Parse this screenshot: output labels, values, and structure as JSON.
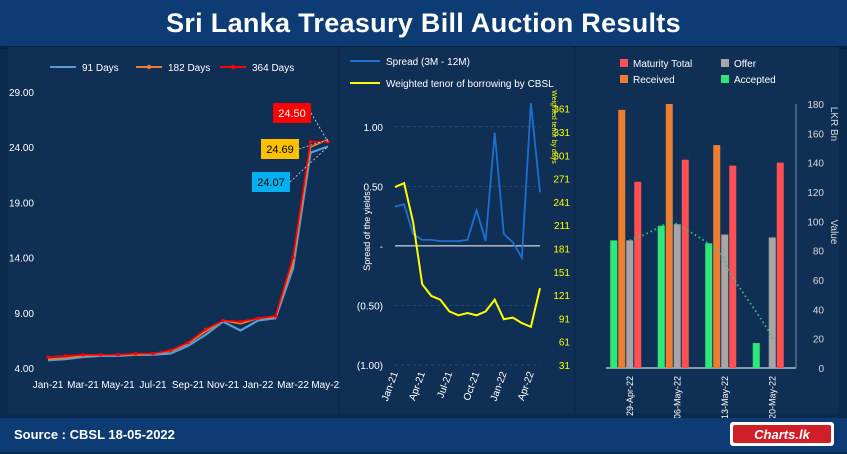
{
  "page": {
    "title": "Sri Lanka Treasury Bill Auction Results",
    "source": "Source : CBSL 18-05-2022",
    "logo_text": "Charts.lk"
  },
  "colors": {
    "bg": "#0c2a4d",
    "panel": "#102f55",
    "d91": "#5b9bd5",
    "d182": "#ed7d31",
    "d364": "#ff0000",
    "spread": "#1f6fd0",
    "tenor": "#ffff00",
    "maturity": "#ff5055",
    "offer": "#a6a6a6",
    "received": "#ed7d31",
    "accepted": "#2ee87a",
    "value_line": "#2ecc71"
  },
  "chart_data": [
    {
      "type": "line",
      "legend": [
        "91 Days",
        "182 Days",
        "364 Days"
      ],
      "ylim": [
        4,
        29
      ],
      "yticks": [
        "29.00",
        "24.00",
        "19.00",
        "14.00",
        "9.00",
        "4.00"
      ],
      "xticks": [
        "Jan-21",
        "Mar-21",
        "May-21",
        "Jul-21",
        "Sep-21",
        "Nov-21",
        "Jan-22",
        "Mar-22",
        "May-22"
      ],
      "x": [
        "Jan-21",
        "Feb-21",
        "Mar-21",
        "Apr-21",
        "May-21",
        "Jun-21",
        "Jul-21",
        "Aug-21",
        "Sep-21",
        "Oct-21",
        "Nov-21",
        "Dec-21",
        "Jan-22",
        "Feb-22",
        "Mar-22",
        "Apr-22",
        "May-22"
      ],
      "series": [
        {
          "name": "91 Days",
          "values": [
            4.7,
            4.8,
            5.0,
            5.1,
            5.1,
            5.2,
            5.2,
            5.3,
            6.0,
            7.0,
            8.2,
            7.4,
            8.3,
            8.5,
            13.0,
            23.5,
            24.07
          ]
        },
        {
          "name": "182 Days",
          "values": [
            4.8,
            4.9,
            5.1,
            5.2,
            5.2,
            5.2,
            5.3,
            5.5,
            6.2,
            7.3,
            8.3,
            8.0,
            8.5,
            8.6,
            13.5,
            24.0,
            24.69
          ]
        },
        {
          "name": "364 Days",
          "values": [
            5.0,
            5.1,
            5.2,
            5.2,
            5.2,
            5.3,
            5.3,
            5.6,
            6.3,
            7.5,
            8.3,
            8.2,
            8.5,
            8.7,
            14.0,
            24.5,
            24.5
          ]
        }
      ],
      "annotations": [
        "24.50",
        "24.69",
        "24.07"
      ]
    },
    {
      "type": "line",
      "legend": [
        "Spread (3M - 12M)",
        "Weighted tenor of borrowing by CBSL"
      ],
      "ylabel_left": "Spread of the yields",
      "ylabel_right": "Weighted tenor by days",
      "ylim_left": [
        -1.0,
        1.25
      ],
      "yticks_left": [
        "1.00",
        "0.50",
        "-",
        "(0.50)",
        "(1.00)"
      ],
      "ylim_right": [
        31,
        376
      ],
      "yticks_right": [
        "361",
        "331",
        "301",
        "271",
        "241",
        "211",
        "181",
        "151",
        "121",
        "91",
        "61",
        "31"
      ],
      "xticks": [
        "Jan-21",
        "Apr-21",
        "Jul-21",
        "Oct-21",
        "Jan-22",
        "Apr-22"
      ],
      "x": [
        "Jan-21",
        "Feb-21",
        "Mar-21",
        "Apr-21",
        "May-21",
        "Jun-21",
        "Jul-21",
        "Aug-21",
        "Sep-21",
        "Oct-21",
        "Nov-21",
        "Dec-21",
        "Jan-22",
        "Feb-22",
        "Mar-22",
        "Apr-22",
        "May-22"
      ],
      "series": [
        {
          "name": "Spread (3M - 12M)",
          "values": [
            0.33,
            0.35,
            0.1,
            0.05,
            0.05,
            0.04,
            0.04,
            0.04,
            0.05,
            0.3,
            0.04,
            0.95,
            0.1,
            0.03,
            -0.1,
            1.2,
            0.45
          ]
        },
        {
          "name": "Weighted tenor of borrowing by CBSL",
          "values": [
            260,
            265,
            215,
            135,
            120,
            115,
            100,
            95,
            98,
            95,
            100,
            115,
            90,
            92,
            85,
            80,
            130
          ]
        }
      ]
    },
    {
      "type": "bar",
      "legend": [
        "Maturity Total",
        "Offer",
        "Received",
        "Accepted"
      ],
      "categories": [
        "29-Apr-22",
        "06-May-22",
        "13-May-22",
        "20-May-22"
      ],
      "series": [
        {
          "name": "Received",
          "values": [
            176,
            180,
            152,
            null
          ]
        },
        {
          "name": "Accepted",
          "values": [
            87,
            97,
            85,
            17
          ]
        },
        {
          "name": "Offer",
          "values": [
            87,
            98,
            91,
            89
          ]
        },
        {
          "name": "Maturity Total",
          "values": [
            127,
            142,
            138,
            140
          ]
        }
      ],
      "value_line": [
        87,
        98,
        73,
        20
      ],
      "ylim": [
        0,
        180
      ],
      "yticks": [
        "180",
        "160",
        "140",
        "120",
        "100",
        "80",
        "60",
        "40",
        "20",
        "0"
      ],
      "ylabel": "LKR Bn",
      "ylabel2": "Value"
    }
  ]
}
